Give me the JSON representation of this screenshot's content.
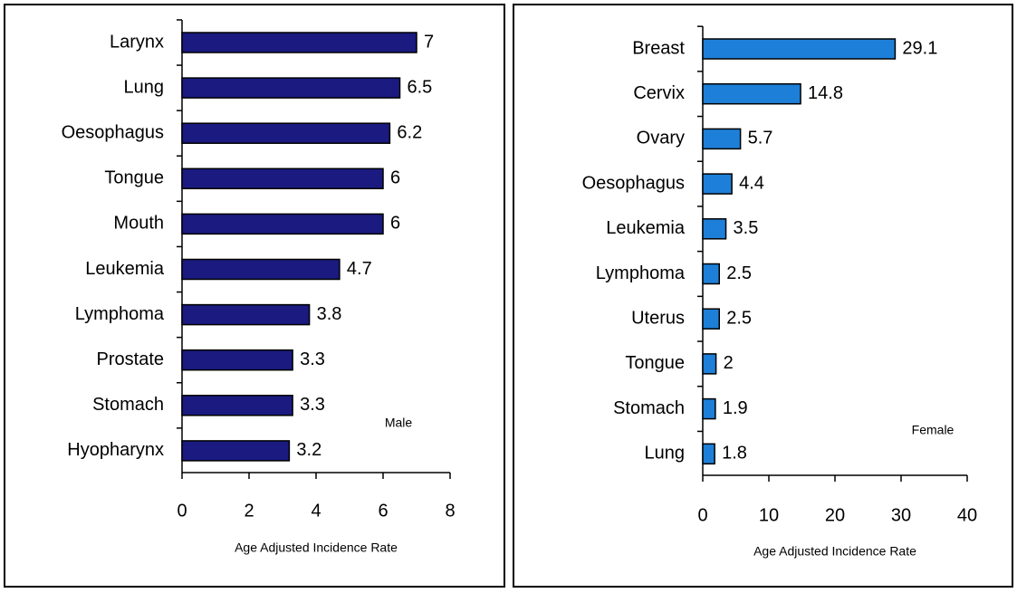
{
  "chart_data": [
    {
      "type": "bar",
      "orientation": "horizontal",
      "annotation": "Male",
      "x_label": "Age Adjusted Incidence Rate",
      "categories": [
        "Larynx",
        "Lung",
        "Oesophagus",
        "Tongue",
        "Mouth",
        "Leukemia",
        "Lymphoma",
        "Prostate",
        "Stomach",
        "Hyopharynx"
      ],
      "values": [
        7,
        6.5,
        6.2,
        6,
        6,
        4.7,
        3.8,
        3.3,
        3.3,
        3.2
      ],
      "color": "#1a1a80",
      "xlim": [
        0,
        8
      ],
      "xticks": [
        0,
        2,
        4,
        6,
        8
      ]
    },
    {
      "type": "bar",
      "orientation": "horizontal",
      "annotation": "Female",
      "x_label": "Age Adjusted Incidence Rate",
      "categories": [
        "Breast",
        "Cervix",
        "Ovary",
        "Oesophagus",
        "Leukemia",
        "Lymphoma",
        "Uterus",
        "Tongue",
        "Stomach",
        "Lung"
      ],
      "values": [
        29.1,
        14.8,
        5.7,
        4.4,
        3.5,
        2.5,
        2.5,
        2,
        1.9,
        1.8
      ],
      "color": "#1e7fd8",
      "xlim": [
        0,
        40
      ],
      "xticks": [
        0,
        10,
        20,
        30,
        40
      ]
    }
  ]
}
